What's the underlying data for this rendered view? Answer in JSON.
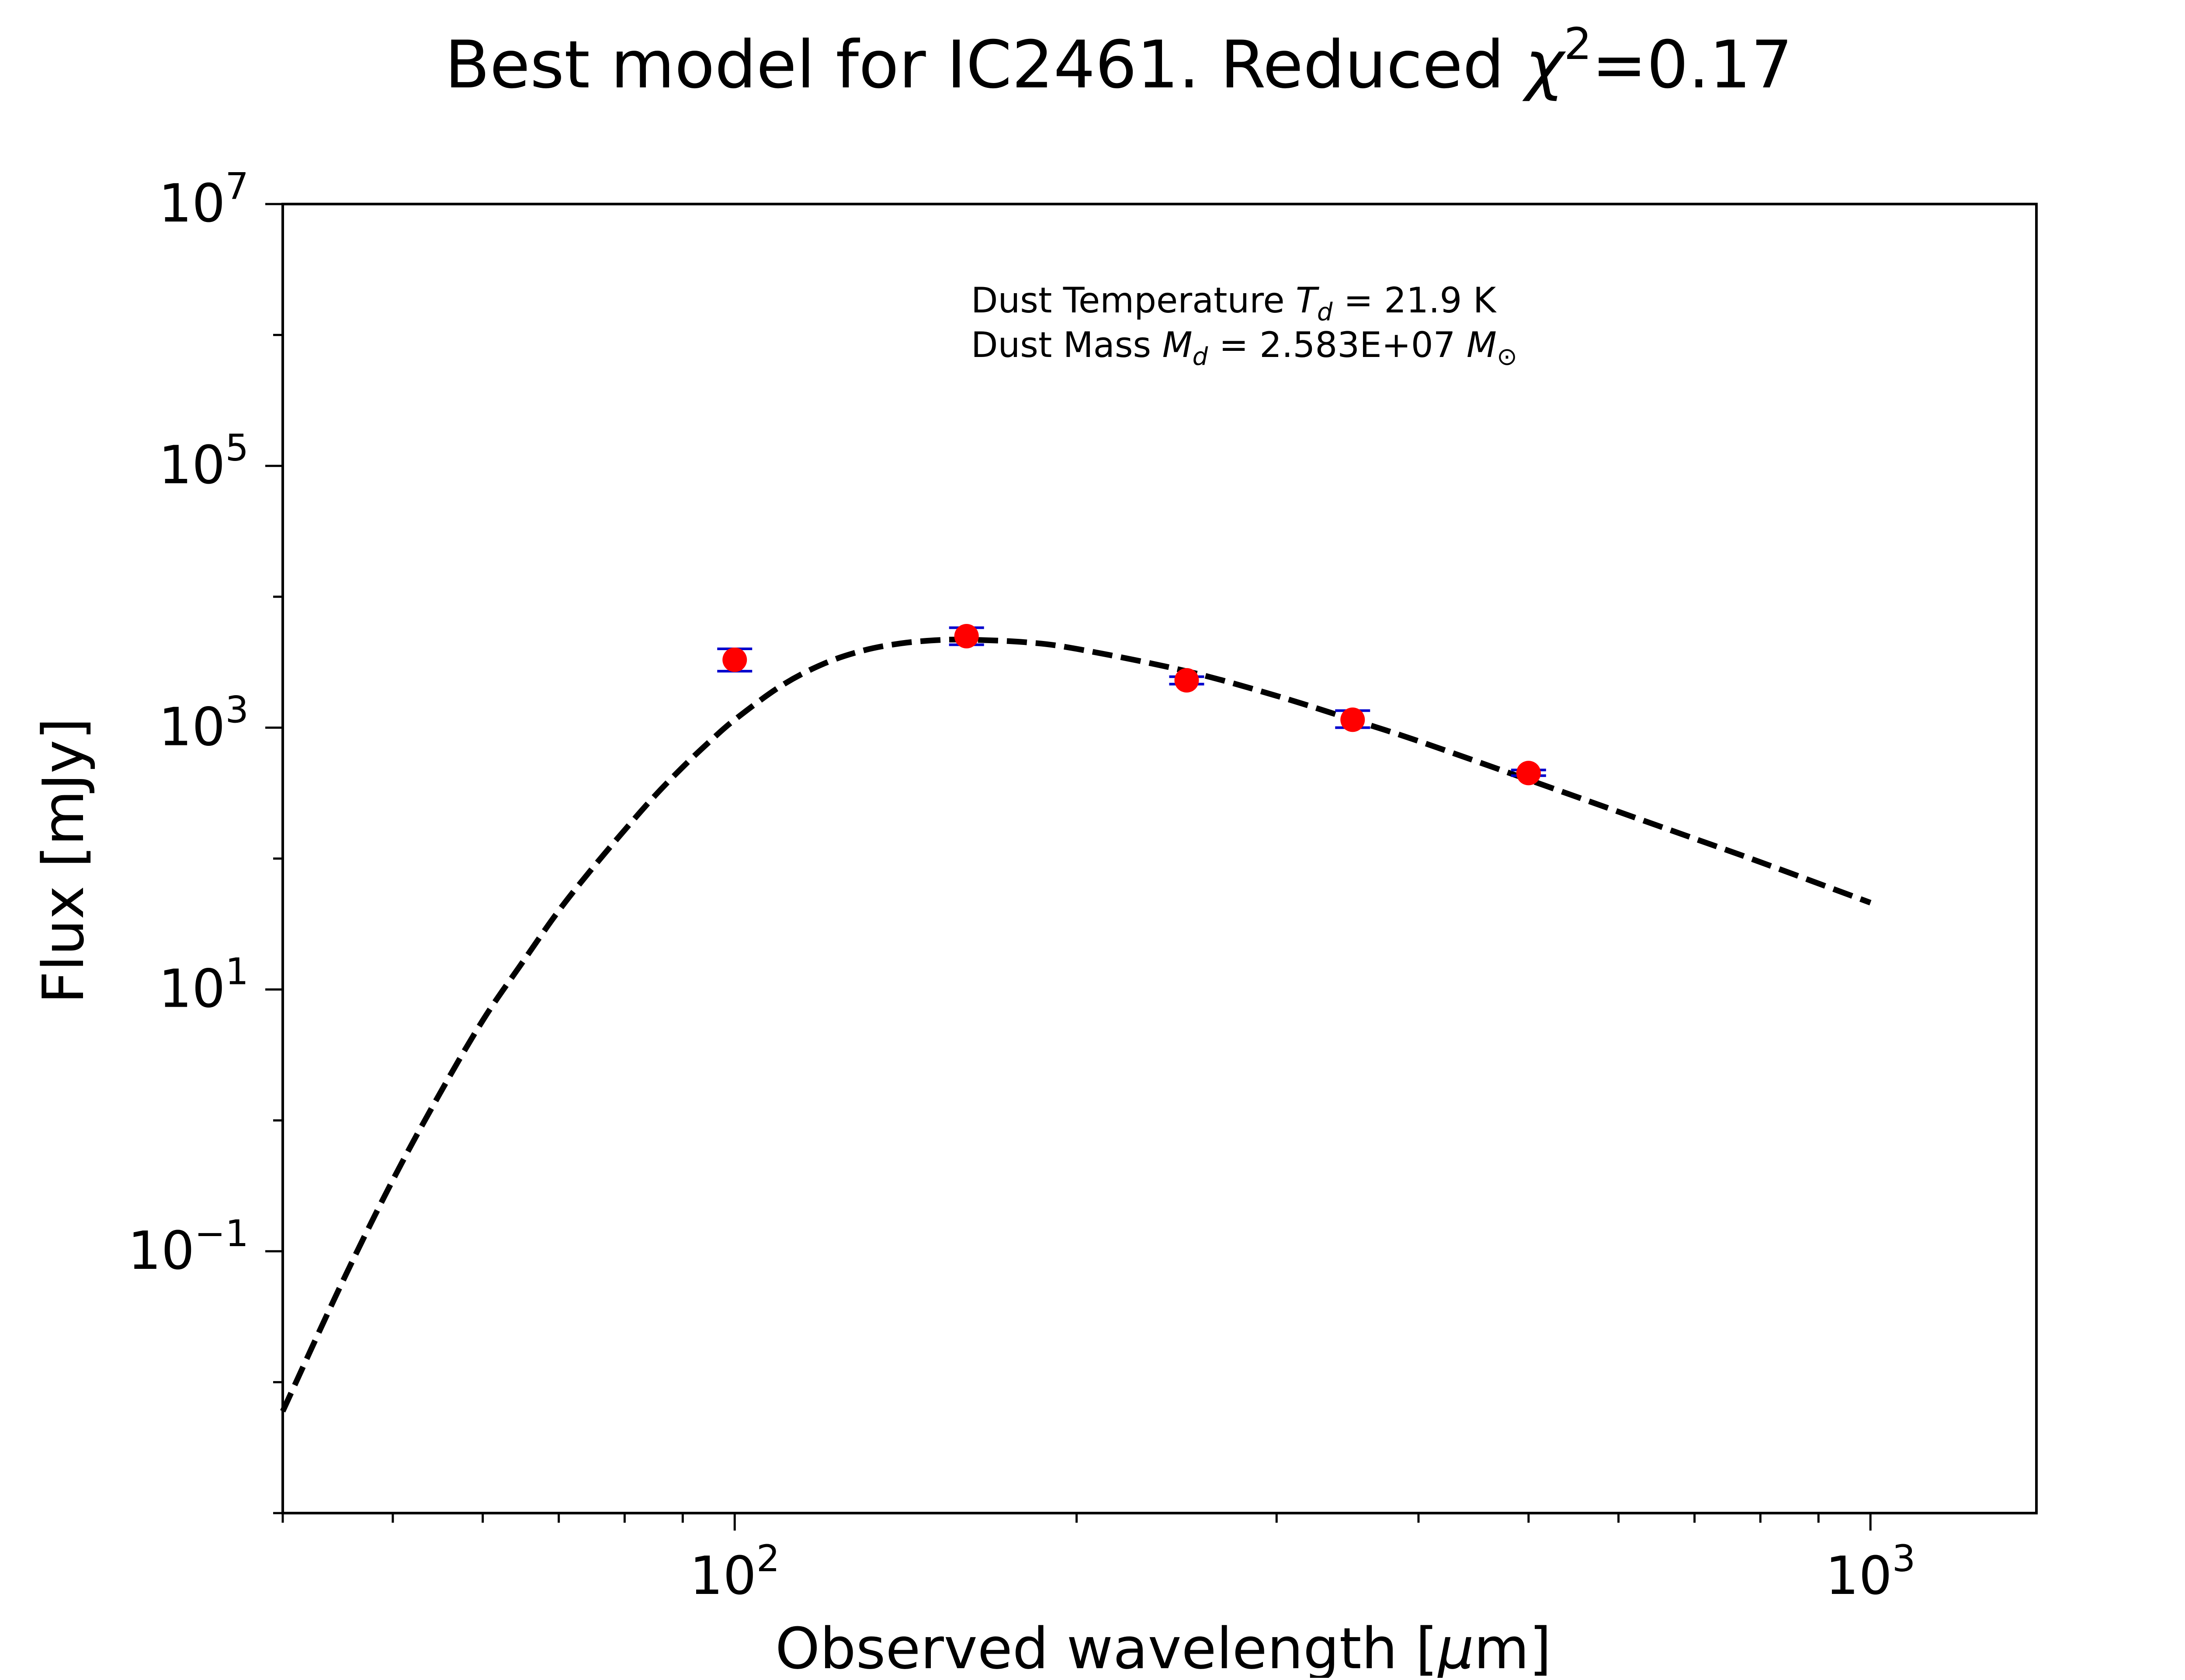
{
  "chart_data": {
    "type": "scatter",
    "title": "Best model for IC2461. Reduced χ²=0.17",
    "title_parts": {
      "prefix": "Best model for IC2461. Reduced ",
      "chi": "χ",
      "exponent": "2",
      "suffix": "=0.17"
    },
    "xlabel": "Observed wavelength [μm]",
    "xlabel_parts": {
      "prefix": "Observed wavelength [",
      "mu": "μ",
      "suffix": "m]"
    },
    "ylabel": "Flux [mJy]",
    "x_scale": "log",
    "y_scale": "log",
    "xlim": [
      40,
      1400
    ],
    "ylim": [
      0.001,
      10000000
    ],
    "x_ticks": [
      {
        "value": 100,
        "base": "10",
        "exp": "2"
      },
      {
        "value": 1000,
        "base": "10",
        "exp": "3"
      }
    ],
    "y_ticks": [
      {
        "value": 0.1,
        "base": "10",
        "exp": "−1"
      },
      {
        "value": 10,
        "base": "10",
        "exp": "1"
      },
      {
        "value": 1000,
        "base": "10",
        "exp": "3"
      },
      {
        "value": 100000,
        "base": "10",
        "exp": "5"
      },
      {
        "value": 10000000,
        "base": "10",
        "exp": "7"
      }
    ],
    "grid": false,
    "annotation": {
      "temperature": {
        "prefix": "Dust Temperature ",
        "symbol": "T",
        "subscript": "d",
        "suffix": " = 21.9 K"
      },
      "mass": {
        "prefix": "Dust Mass ",
        "symbol": "M",
        "subscript": "d",
        "middle": " = 2.583E+07 ",
        "unit": "M",
        "unit_subscript": "⊙"
      }
    },
    "series": [
      {
        "kind": "model",
        "style": "dashed",
        "color": "#000000",
        "x": [
          40,
          45,
          50,
          55,
          60,
          65,
          70,
          75,
          80,
          85,
          90,
          95,
          100,
          110,
          120,
          130,
          140,
          150,
          160,
          180,
          200,
          250,
          300,
          350,
          400,
          500,
          600,
          700,
          800,
          1000
        ],
        "y": [
          0.006,
          0.055,
          0.35,
          1.6,
          5.8,
          16,
          40,
          85,
          165,
          300,
          500,
          780,
          1150,
          2100,
          3100,
          3900,
          4400,
          4650,
          4700,
          4500,
          4000,
          2700,
          1750,
          1150,
          790,
          400,
          228,
          142,
          94,
          46
        ]
      },
      {
        "kind": "observed",
        "marker_color": "#ff0000",
        "errorbar_color": "#0000cc",
        "points": [
          {
            "x": 100,
            "y": 3300,
            "err_lo": 2700,
            "err_hi": 4000
          },
          {
            "x": 160,
            "y": 5000,
            "err_lo": 4300,
            "err_hi": 5800
          },
          {
            "x": 250,
            "y": 2300,
            "err_lo": 2150,
            "err_hi": 2450
          },
          {
            "x": 350,
            "y": 1150,
            "err_lo": 1000,
            "err_hi": 1350
          },
          {
            "x": 500,
            "y": 450,
            "err_lo": 430,
            "err_hi": 475
          }
        ]
      }
    ]
  }
}
